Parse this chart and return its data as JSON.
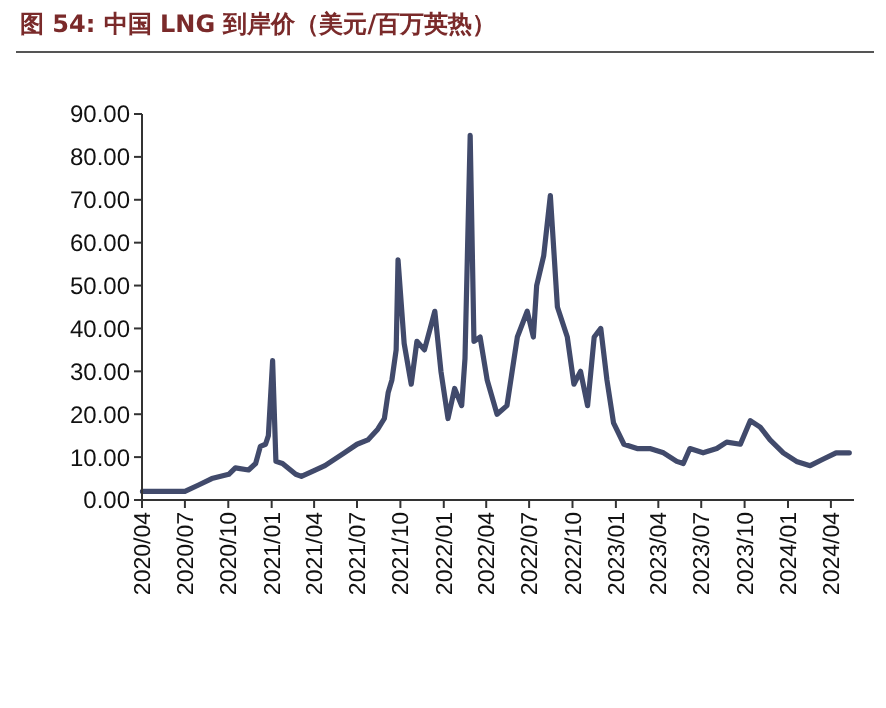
{
  "chart_data": {
    "type": "line",
    "title": "图 54:  中国 LNG 到岸价（美元/百万英热）",
    "x": [
      "2020-04-02",
      "2020-07-01",
      "2020-07-30",
      "2020-08-27",
      "2020-10-02",
      "2020-10-16",
      "2020-11-13",
      "2020-11-28",
      "2020-12-08",
      "2020-12-19",
      "2020-12-25",
      "2021-01-03",
      "2021-01-10",
      "2021-01-24",
      "2021-02-21",
      "2021-03-05",
      "2021-03-25",
      "2021-04-24",
      "2021-06-04",
      "2021-07-01",
      "2021-07-24",
      "2021-08-14",
      "2021-08-28",
      "2021-09-05",
      "2021-09-13",
      "2021-09-22",
      "2021-09-26",
      "2021-10-09",
      "2021-10-24",
      "2021-11-05",
      "2021-11-21",
      "2021-12-13",
      "2021-12-26",
      "2022-01-10",
      "2022-01-24",
      "2022-02-08",
      "2022-02-15",
      "2022-02-26",
      "2022-03-06",
      "2022-03-19",
      "2022-04-03",
      "2022-04-24",
      "2022-05-15",
      "2022-06-06",
      "2022-06-27",
      "2022-07-10",
      "2022-07-17",
      "2022-08-01",
      "2022-08-15",
      "2022-08-30",
      "2022-09-20",
      "2022-10-04",
      "2022-10-18",
      "2022-11-02",
      "2022-11-16",
      "2022-11-30",
      "2022-12-13",
      "2022-12-27",
      "2023-01-18",
      "2023-02-15",
      "2023-03-14",
      "2023-04-12",
      "2023-05-10",
      "2023-05-24",
      "2023-06-07",
      "2023-07-05",
      "2023-08-03",
      "2023-08-24",
      "2023-09-22",
      "2023-10-13",
      "2023-11-03",
      "2023-11-24",
      "2023-12-22",
      "2024-01-19",
      "2024-02-17",
      "2024-03-15",
      "2024-04-12",
      "2024-05-10"
    ],
    "series": [
      {
        "color": "#414a6b",
        "values": [
          2,
          2,
          3.5,
          5,
          6,
          7.5,
          7,
          8.5,
          12.5,
          13,
          15,
          32.5,
          9,
          8.5,
          6,
          5.5,
          6.5,
          8,
          11,
          13,
          14,
          16.5,
          19,
          25,
          28,
          35,
          56,
          36.5,
          27,
          37,
          35,
          44,
          30,
          19,
          26,
          22,
          33,
          85,
          37,
          38,
          28,
          20,
          22,
          38,
          44,
          38,
          50,
          57,
          71,
          45,
          38,
          27,
          30,
          22,
          38,
          40,
          28,
          18,
          13,
          12,
          12,
          11,
          9,
          8.5,
          12,
          11,
          12,
          13.5,
          13,
          18.5,
          17,
          14,
          11,
          9,
          8,
          9.5,
          11,
          11
        ]
      }
    ],
    "xlim": [
      "2020-04-01",
      "2024-05-20"
    ],
    "xticks": [
      {
        "value": "2020-04-01",
        "label": "2020/04"
      },
      {
        "value": "2020-07-01",
        "label": "2020/07"
      },
      {
        "value": "2020-10-01",
        "label": "2020/10"
      },
      {
        "value": "2021-01-01",
        "label": "2021/01"
      },
      {
        "value": "2021-04-01",
        "label": "2021/04"
      },
      {
        "value": "2021-07-01",
        "label": "2021/07"
      },
      {
        "value": "2021-10-01",
        "label": "2021/10"
      },
      {
        "value": "2022-01-01",
        "label": "2022/01"
      },
      {
        "value": "2022-04-01",
        "label": "2022/04"
      },
      {
        "value": "2022-07-01",
        "label": "2022/07"
      },
      {
        "value": "2022-10-01",
        "label": "2022/10"
      },
      {
        "value": "2023-01-01",
        "label": "2023/01"
      },
      {
        "value": "2023-04-01",
        "label": "2023/04"
      },
      {
        "value": "2023-07-01",
        "label": "2023/07"
      },
      {
        "value": "2023-10-01",
        "label": "2023/10"
      },
      {
        "value": "2024-01-01",
        "label": "2024/01"
      },
      {
        "value": "2024-04-01",
        "label": "2024/04"
      }
    ],
    "ylim": [
      0,
      90
    ],
    "yticks": [
      {
        "value": 0,
        "label": "0.00"
      },
      {
        "value": 10,
        "label": "10.00"
      },
      {
        "value": 20,
        "label": "20.00"
      },
      {
        "value": 30,
        "label": "30.00"
      },
      {
        "value": 40,
        "label": "40.00"
      },
      {
        "value": 50,
        "label": "50.00"
      },
      {
        "value": 60,
        "label": "60.00"
      },
      {
        "value": 70,
        "label": "70.00"
      },
      {
        "value": 80,
        "label": "80.00"
      },
      {
        "value": 90,
        "label": "90.00"
      }
    ],
    "grid": false,
    "marker": "none",
    "line_style": "solid"
  }
}
